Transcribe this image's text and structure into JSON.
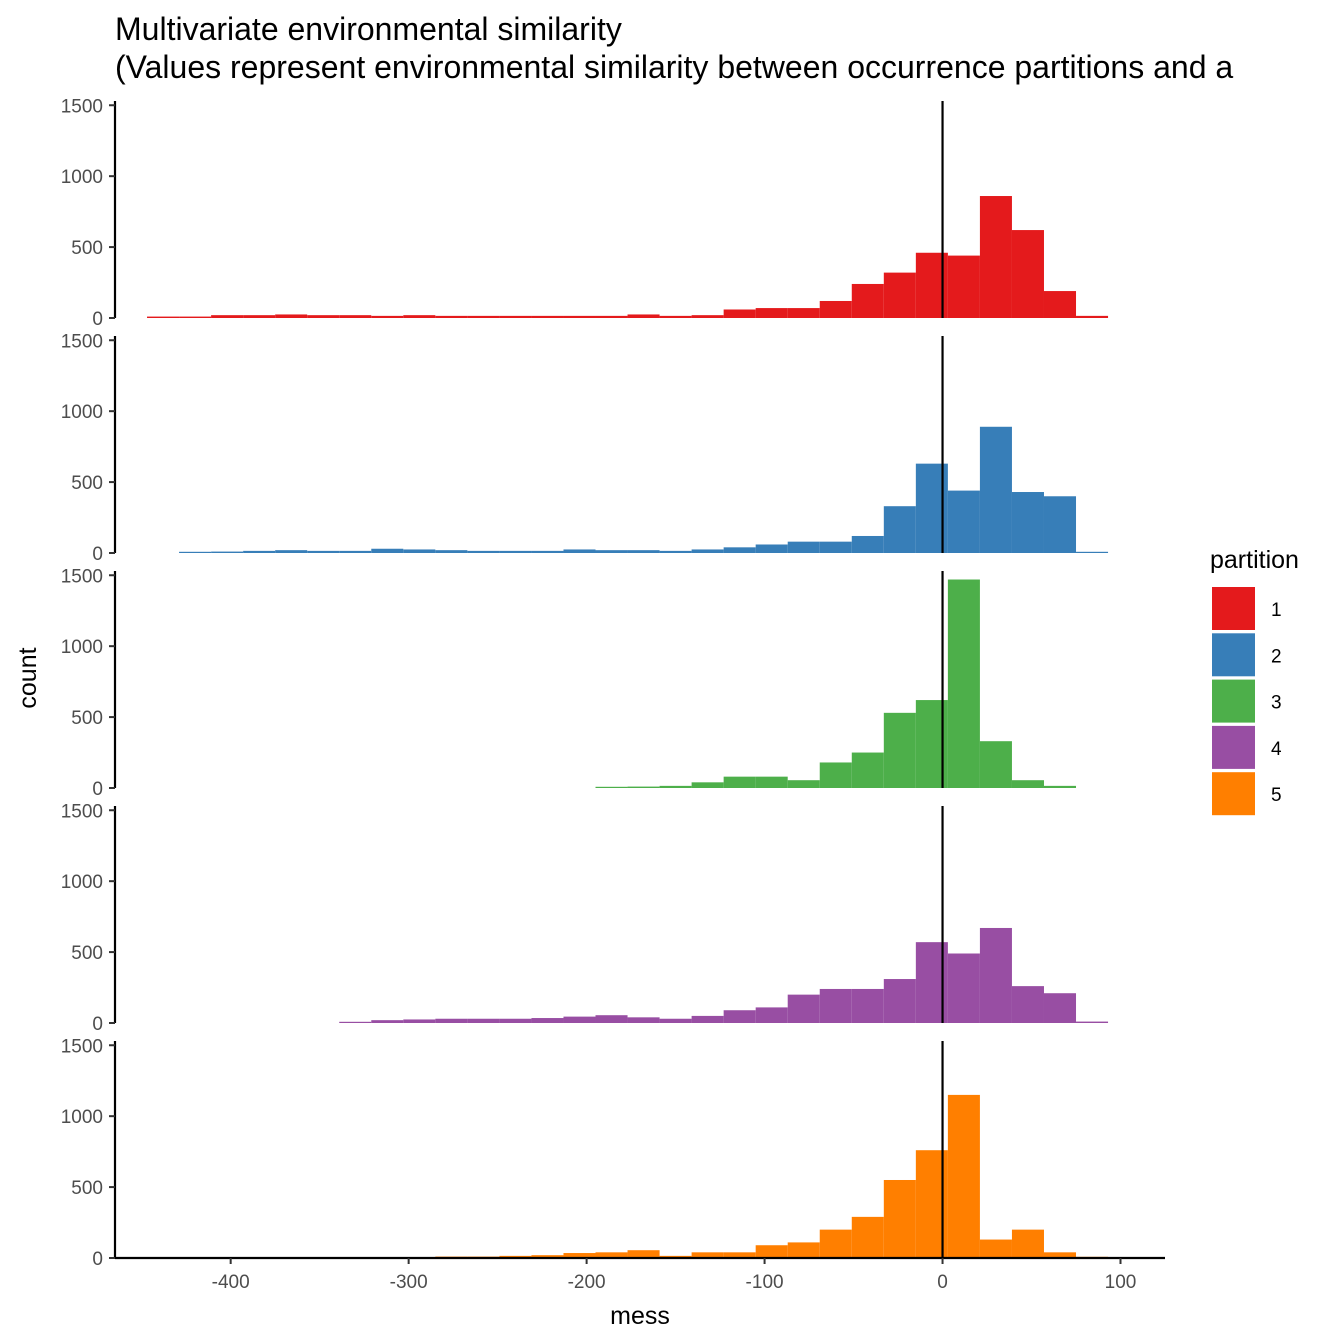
{
  "chart_data": {
    "type": "histogram-faceted",
    "title": "Multivariate environmental similarity",
    "subtitle": "(Values represent environmental similarity between occurrence partitions and a",
    "xlabel": "mess",
    "ylabel": "count",
    "xlim": [
      -465,
      125
    ],
    "ylim": [
      0,
      1530
    ],
    "x_ticks": [
      -400,
      -300,
      -200,
      -100,
      0,
      100
    ],
    "x_tick_labels": [
      "-400",
      "-300",
      "-200",
      "-100",
      "0",
      "100"
    ],
    "y_ticks": [
      0,
      500,
      1000,
      1500
    ],
    "y_tick_labels": [
      "0",
      "500",
      "1000",
      "1500"
    ],
    "bin_width": 18,
    "bin_origin": -447,
    "vline_x": 0,
    "grid": false,
    "legend": {
      "title": "partition",
      "position": "right",
      "entries": [
        "1",
        "2",
        "3",
        "4",
        "5"
      ]
    },
    "series": [
      {
        "name": "1",
        "color": "#E41A1C",
        "counts": [
          10,
          10,
          20,
          20,
          25,
          20,
          20,
          15,
          20,
          15,
          15,
          15,
          15,
          15,
          15,
          25,
          15,
          20,
          60,
          70,
          70,
          120,
          240,
          320,
          460,
          440,
          860,
          620,
          190,
          15
        ]
      },
      {
        "name": "2",
        "color": "#377EB8",
        "counts": [
          0,
          5,
          10,
          15,
          20,
          15,
          15,
          30,
          25,
          20,
          15,
          15,
          15,
          25,
          20,
          20,
          15,
          25,
          40,
          60,
          80,
          80,
          120,
          330,
          630,
          440,
          890,
          430,
          400,
          5
        ]
      },
      {
        "name": "3",
        "color": "#4DAF4A",
        "counts": [
          0,
          0,
          0,
          0,
          0,
          0,
          0,
          0,
          0,
          0,
          0,
          0,
          0,
          0,
          5,
          10,
          15,
          40,
          80,
          80,
          55,
          180,
          250,
          530,
          620,
          1470,
          330,
          55,
          15,
          0
        ]
      },
      {
        "name": "4",
        "color": "#984EA3",
        "counts": [
          0,
          0,
          0,
          0,
          0,
          0,
          5,
          20,
          25,
          30,
          30,
          30,
          35,
          45,
          55,
          40,
          30,
          50,
          90,
          110,
          200,
          240,
          240,
          310,
          570,
          490,
          670,
          260,
          210,
          10
        ]
      },
      {
        "name": "5",
        "color": "#FF7F00",
        "counts": [
          0,
          0,
          0,
          0,
          0,
          0,
          0,
          0,
          0,
          10,
          10,
          15,
          20,
          35,
          40,
          55,
          15,
          40,
          40,
          90,
          110,
          200,
          290,
          550,
          760,
          1150,
          130,
          200,
          40,
          5
        ]
      }
    ]
  }
}
